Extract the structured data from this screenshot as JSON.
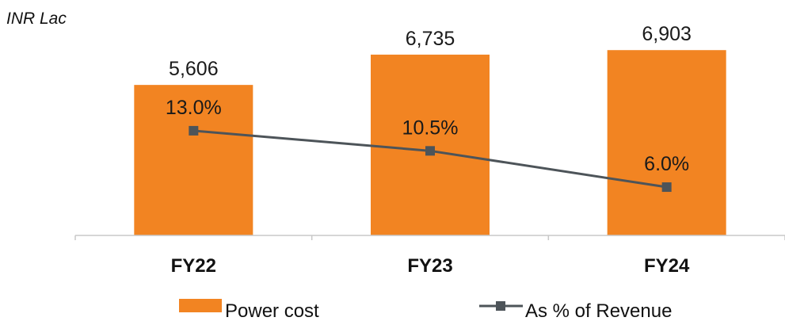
{
  "chart_data": {
    "type": "bar",
    "unit_label": "INR Lac",
    "categories": [
      "FY22",
      "FY23",
      "FY24"
    ],
    "series": [
      {
        "name": "Power cost",
        "kind": "bar",
        "color": "#f28422",
        "values": [
          5606,
          6735,
          6903
        ],
        "labels": [
          "5,606",
          "6,735",
          "6,903"
        ]
      },
      {
        "name": "As % of Revenue",
        "kind": "line",
        "color": "#4d5459",
        "marker": "square",
        "values": [
          13.0,
          10.5,
          6.0
        ],
        "labels": [
          "13.0%",
          "10.5%",
          "6.0%"
        ]
      }
    ],
    "primary_axis": {
      "ylim": [
        0,
        7500
      ],
      "visible": false
    },
    "secondary_axis": {
      "ylim": [
        0,
        25
      ],
      "visible": false
    },
    "grid": false,
    "legend": {
      "position": "bottom"
    }
  }
}
